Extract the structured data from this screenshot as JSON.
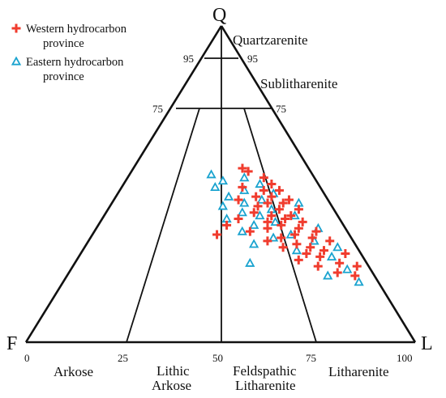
{
  "corners": {
    "q": "Q",
    "f": "F",
    "l": "L"
  },
  "ticks": {
    "q95_left": "95",
    "q95_right": "95",
    "q75_left": "75",
    "q75_right": "75",
    "b0": "0",
    "b25": "25",
    "b50": "50",
    "b75": "75",
    "b100": "100"
  },
  "fields": {
    "quartzarenite": "Quartzarenite",
    "sublitharenite": "Sublitharenite",
    "arkose": "Arkose",
    "lithic_arkose_1": "Lithic",
    "lithic_arkose_2": "Arkose",
    "feldspathic_1": "Feldspathic",
    "feldspathic_2": "Litharenite",
    "litharenite": "Litharenite"
  },
  "legend": {
    "western_1": "Western hydrocarbon",
    "western_2": "province",
    "eastern_1": "Eastern hydrocarbon",
    "eastern_2": "province"
  },
  "colors": {
    "western": "#f03c2e",
    "eastern": "#1aa3cf",
    "lines": "#111111"
  },
  "markers": {
    "western": "plus",
    "eastern": "triangle"
  },
  "chart_data": {
    "type": "scatter",
    "diagram": "QFL ternary",
    "vertices": [
      "Q",
      "F",
      "L"
    ],
    "q_lines": [
      95,
      75
    ],
    "base_ticks": [
      0,
      25,
      50,
      75,
      100
    ],
    "series": [
      {
        "name": "Western hydrocarbon province",
        "marker": "plus",
        "color": "#f03c2e",
        "points": [
          {
            "q": 55,
            "f": 17,
            "l": 28
          },
          {
            "q": 54,
            "f": 16,
            "l": 30
          },
          {
            "q": 52,
            "f": 13,
            "l": 35
          },
          {
            "q": 50,
            "f": 12,
            "l": 38
          },
          {
            "q": 49,
            "f": 20,
            "l": 31
          },
          {
            "q": 48,
            "f": 15,
            "l": 37
          },
          {
            "q": 48,
            "f": 11,
            "l": 41
          },
          {
            "q": 46,
            "f": 18,
            "l": 36
          },
          {
            "q": 46,
            "f": 14,
            "l": 40
          },
          {
            "q": 45,
            "f": 10,
            "l": 45
          },
          {
            "q": 45,
            "f": 23,
            "l": 32
          },
          {
            "q": 44,
            "f": 16,
            "l": 40
          },
          {
            "q": 44,
            "f": 12,
            "l": 44
          },
          {
            "q": 43,
            "f": 19,
            "l": 38
          },
          {
            "q": 42,
            "f": 14,
            "l": 44
          },
          {
            "q": 42,
            "f": 9,
            "l": 49
          },
          {
            "q": 41,
            "f": 21,
            "l": 38
          },
          {
            "q": 40,
            "f": 17,
            "l": 43
          },
          {
            "q": 40,
            "f": 12,
            "l": 48
          },
          {
            "q": 39,
            "f": 26,
            "l": 35
          },
          {
            "q": 39,
            "f": 14,
            "l": 47
          },
          {
            "q": 38,
            "f": 19,
            "l": 43
          },
          {
            "q": 38,
            "f": 10,
            "l": 52
          },
          {
            "q": 37,
            "f": 16,
            "l": 47
          },
          {
            "q": 37,
            "f": 30,
            "l": 33
          },
          {
            "q": 36,
            "f": 12,
            "l": 52
          },
          {
            "q": 36,
            "f": 20,
            "l": 44
          },
          {
            "q": 35,
            "f": 8,
            "l": 57
          },
          {
            "q": 35,
            "f": 25,
            "l": 40
          },
          {
            "q": 34,
            "f": 14,
            "l": 52
          },
          {
            "q": 34,
            "f": 34,
            "l": 32
          },
          {
            "q": 33,
            "f": 18,
            "l": 49
          },
          {
            "q": 33,
            "f": 10,
            "l": 57
          },
          {
            "q": 32,
            "f": 22,
            "l": 46
          },
          {
            "q": 32,
            "f": 6,
            "l": 62
          },
          {
            "q": 31,
            "f": 15,
            "l": 54
          },
          {
            "q": 30,
            "f": 12,
            "l": 58
          },
          {
            "q": 30,
            "f": 19,
            "l": 51
          },
          {
            "q": 29,
            "f": 9,
            "l": 62
          },
          {
            "q": 28,
            "f": 14,
            "l": 58
          },
          {
            "q": 28,
            "f": 4,
            "l": 68
          },
          {
            "q": 27,
            "f": 11,
            "l": 62
          },
          {
            "q": 26,
            "f": 17,
            "l": 57
          },
          {
            "q": 25,
            "f": 7,
            "l": 68
          },
          {
            "q": 24,
            "f": 13,
            "l": 63
          },
          {
            "q": 24,
            "f": 3,
            "l": 73
          },
          {
            "q": 22,
            "f": 9,
            "l": 69
          },
          {
            "q": 21,
            "f": 5,
            "l": 74
          }
        ]
      },
      {
        "name": "Eastern hydrocarbon province",
        "marker": "triangle",
        "color": "#1aa3cf",
        "points": [
          {
            "q": 53,
            "f": 26,
            "l": 21
          },
          {
            "q": 52,
            "f": 18,
            "l": 30
          },
          {
            "q": 51,
            "f": 24,
            "l": 25
          },
          {
            "q": 50,
            "f": 15,
            "l": 35
          },
          {
            "q": 49,
            "f": 27,
            "l": 24
          },
          {
            "q": 48,
            "f": 20,
            "l": 32
          },
          {
            "q": 47,
            "f": 13,
            "l": 40
          },
          {
            "q": 46,
            "f": 25,
            "l": 29
          },
          {
            "q": 45,
            "f": 17,
            "l": 38
          },
          {
            "q": 44,
            "f": 22,
            "l": 34
          },
          {
            "q": 44,
            "f": 8,
            "l": 48
          },
          {
            "q": 43,
            "f": 28,
            "l": 29
          },
          {
            "q": 42,
            "f": 16,
            "l": 42
          },
          {
            "q": 41,
            "f": 24,
            "l": 35
          },
          {
            "q": 40,
            "f": 20,
            "l": 40
          },
          {
            "q": 40,
            "f": 11,
            "l": 49
          },
          {
            "q": 39,
            "f": 29,
            "l": 32
          },
          {
            "q": 38,
            "f": 17,
            "l": 45
          },
          {
            "q": 37,
            "f": 23,
            "l": 40
          },
          {
            "q": 36,
            "f": 7,
            "l": 57
          },
          {
            "q": 35,
            "f": 27,
            "l": 38
          },
          {
            "q": 34,
            "f": 15,
            "l": 51
          },
          {
            "q": 33,
            "f": 20,
            "l": 47
          },
          {
            "q": 32,
            "f": 10,
            "l": 58
          },
          {
            "q": 31,
            "f": 26,
            "l": 43
          },
          {
            "q": 30,
            "f": 5,
            "l": 65
          },
          {
            "q": 29,
            "f": 16,
            "l": 55
          },
          {
            "q": 27,
            "f": 8,
            "l": 65
          },
          {
            "q": 25,
            "f": 30,
            "l": 45
          },
          {
            "q": 23,
            "f": 6,
            "l": 71
          },
          {
            "q": 21,
            "f": 12,
            "l": 67
          },
          {
            "q": 19,
            "f": 5,
            "l": 76
          }
        ]
      }
    ]
  }
}
